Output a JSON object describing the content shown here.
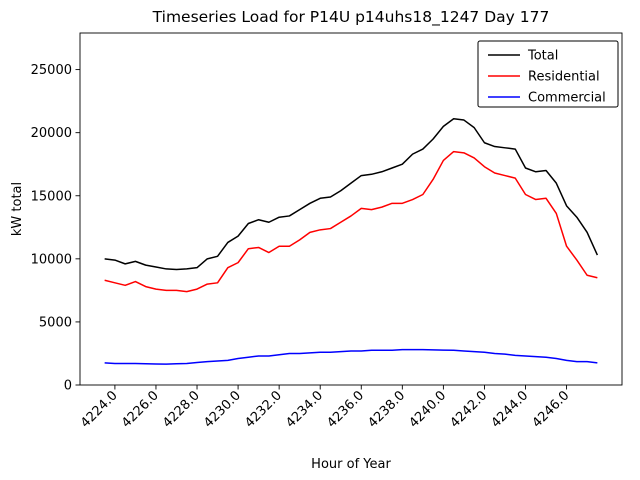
{
  "figure": {
    "background": "#ffffff"
  },
  "chart_data": {
    "type": "line",
    "title": "Timeseries Load for P14U p14uhs18_1247  Day 177",
    "xlabel": "Hour of Year",
    "ylabel": "kW total",
    "xlim": [
      4222.3,
      4248.7
    ],
    "ylim": [
      0,
      27900
    ],
    "xticks": [
      4224,
      4226,
      4228,
      4230,
      4232,
      4234,
      4236,
      4238,
      4240,
      4242,
      4244,
      4246
    ],
    "yticks": [
      0,
      5000,
      10000,
      15000,
      20000,
      25000
    ],
    "grid": false,
    "legend_position": "upper right",
    "x": [
      4223.5,
      4224.0,
      4224.5,
      4225.0,
      4225.5,
      4226.0,
      4226.5,
      4227.0,
      4227.5,
      4228.0,
      4228.5,
      4229.0,
      4229.5,
      4230.0,
      4230.5,
      4231.0,
      4231.5,
      4232.0,
      4232.5,
      4233.0,
      4233.5,
      4234.0,
      4234.5,
      4235.0,
      4235.5,
      4236.0,
      4236.5,
      4237.0,
      4237.5,
      4238.0,
      4238.5,
      4239.0,
      4239.5,
      4240.0,
      4240.5,
      4241.0,
      4241.5,
      4242.0,
      4242.5,
      4243.0,
      4243.5,
      4244.0,
      4244.5,
      4245.0,
      4245.5,
      4246.0,
      4246.5,
      4247.0,
      4247.5
    ],
    "series": [
      {
        "name": "Total",
        "color": "#000000",
        "values": [
          10000,
          9900,
          9600,
          9800,
          9500,
          9350,
          9200,
          9150,
          9200,
          9300,
          10000,
          10200,
          11300,
          11800,
          12800,
          13100,
          12900,
          13300,
          13400,
          13900,
          14400,
          14800,
          14900,
          15400,
          16000,
          16600,
          16700,
          16900,
          17200,
          17500,
          18300,
          18700,
          19500,
          20500,
          21100,
          21000,
          20400,
          19200,
          18900,
          18800,
          18700,
          17200,
          16900,
          17000,
          16000,
          14200,
          13300,
          12100,
          10300
        ]
      },
      {
        "name": "Residential",
        "color": "#ff0000",
        "values": [
          8300,
          8100,
          7900,
          8200,
          7800,
          7600,
          7500,
          7500,
          7400,
          7600,
          8000,
          8100,
          9300,
          9700,
          10800,
          10900,
          10500,
          11000,
          11000,
          11500,
          12100,
          12300,
          12400,
          12900,
          13400,
          14000,
          13900,
          14100,
          14400,
          14400,
          14700,
          15100,
          16300,
          17800,
          18500,
          18400,
          18000,
          17300,
          16800,
          16600,
          16400,
          15100,
          14700,
          14800,
          13600,
          11000,
          9900,
          8700,
          8500
        ]
      },
      {
        "name": "Commercial",
        "color": "#0000ff",
        "values": [
          1750,
          1700,
          1700,
          1700,
          1680,
          1660,
          1650,
          1680,
          1700,
          1780,
          1850,
          1900,
          1950,
          2100,
          2200,
          2300,
          2300,
          2400,
          2500,
          2500,
          2550,
          2600,
          2600,
          2650,
          2700,
          2700,
          2750,
          2750,
          2750,
          2800,
          2800,
          2800,
          2780,
          2760,
          2750,
          2700,
          2650,
          2600,
          2500,
          2450,
          2350,
          2300,
          2250,
          2200,
          2100,
          1950,
          1850,
          1850,
          1750
        ]
      }
    ]
  }
}
